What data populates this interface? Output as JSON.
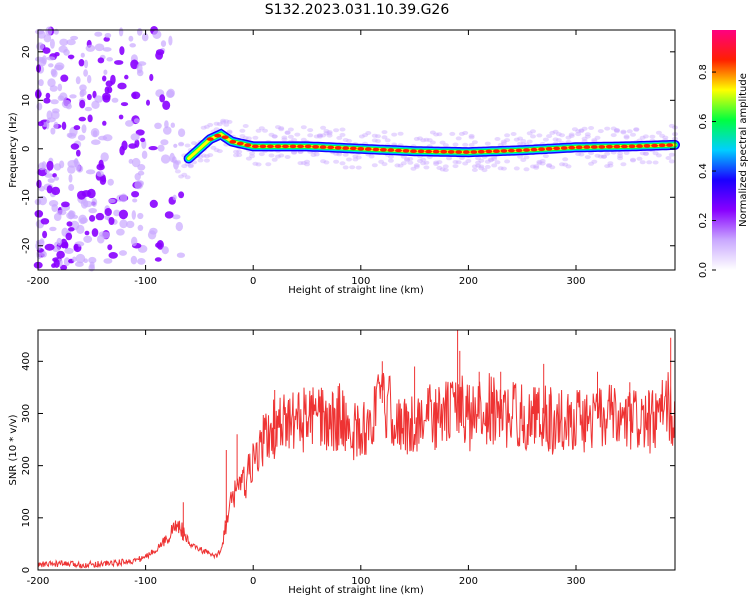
{
  "title": "S132.2023.031.10.39.G26",
  "chart_data": [
    {
      "type": "heatmap",
      "xlabel": "Height of straight line (km)",
      "ylabel": "Frequency (Hz)",
      "xlim": [
        -200,
        392
      ],
      "ylim": [
        -25,
        24.5
      ],
      "xticks": [
        -200,
        -100,
        0,
        100,
        200,
        300
      ],
      "yticks": [
        -20,
        -10,
        0,
        10,
        20
      ],
      "colorbar": {
        "label": "Normalized spectral amplitude",
        "range": [
          0.0,
          0.97
        ],
        "ticks": [
          0.0,
          0.2,
          0.4,
          0.6,
          0.8
        ],
        "colormap": [
          "#ffffff",
          "#c9a8ff",
          "#8800ff",
          "#1a00ff",
          "#00cfff",
          "#00ff40",
          "#ffff00",
          "#ff2000",
          "#ff0080"
        ]
      },
      "ridge": {
        "name": "",
        "x": [
          -60,
          -50,
          -40,
          -30,
          -20,
          0,
          50,
          100,
          150,
          200,
          250,
          300,
          350,
          392
        ],
        "y": [
          -2,
          0,
          2,
          3,
          1.5,
          0.5,
          0.5,
          0,
          -0.5,
          -0.7,
          -0.3,
          0.3,
          0.5,
          0.8
        ]
      },
      "noise_region": {
        "x": [
          -200,
          -65
        ],
        "description": ""
      }
    },
    {
      "type": "line",
      "xlabel": "Height of straight line (km)",
      "ylabel": "SNR (10 * v/v)",
      "xlim": [
        -200,
        392
      ],
      "ylim": [
        0,
        460
      ],
      "xticks": [
        -200,
        -100,
        0,
        100,
        200,
        300
      ],
      "yticks": [
        0,
        100,
        200,
        300,
        400
      ],
      "color": "#ee3333",
      "series": [
        {
          "name": "",
          "x": [
            -200,
            -180,
            -160,
            -140,
            -120,
            -110,
            -100,
            -90,
            -80,
            -75,
            -70,
            -65,
            -60,
            -50,
            -40,
            -35,
            -30,
            -25,
            -20,
            -15,
            -10,
            0,
            10,
            20,
            30,
            40,
            50,
            60,
            70,
            80,
            90,
            100,
            110,
            115,
            120,
            130,
            140,
            150,
            160,
            170,
            180,
            190,
            200,
            210,
            220,
            230,
            240,
            250,
            260,
            270,
            280,
            290,
            300,
            310,
            320,
            330,
            340,
            350,
            360,
            370,
            380,
            385,
            392
          ],
          "y": [
            10,
            12,
            10,
            12,
            15,
            18,
            25,
            40,
            60,
            75,
            90,
            70,
            50,
            40,
            30,
            25,
            40,
            90,
            130,
            170,
            160,
            200,
            250,
            270,
            280,
            285,
            290,
            290,
            280,
            295,
            270,
            260,
            290,
            310,
            320,
            300,
            270,
            280,
            300,
            290,
            300,
            320,
            290,
            300,
            310,
            290,
            300,
            295,
            290,
            300,
            280,
            290,
            290,
            285,
            290,
            295,
            280,
            285,
            290,
            280,
            300,
            320,
            290
          ],
          "spikes_x": [
            -65,
            -25,
            -15,
            20,
            120,
            150,
            190,
            192,
            210,
            230,
            270,
            320,
            350,
            388
          ],
          "spikes_y": [
            130,
            230,
            260,
            345,
            400,
            390,
            460,
            420,
            380,
            380,
            395,
            380,
            360,
            445
          ]
        }
      ]
    }
  ]
}
